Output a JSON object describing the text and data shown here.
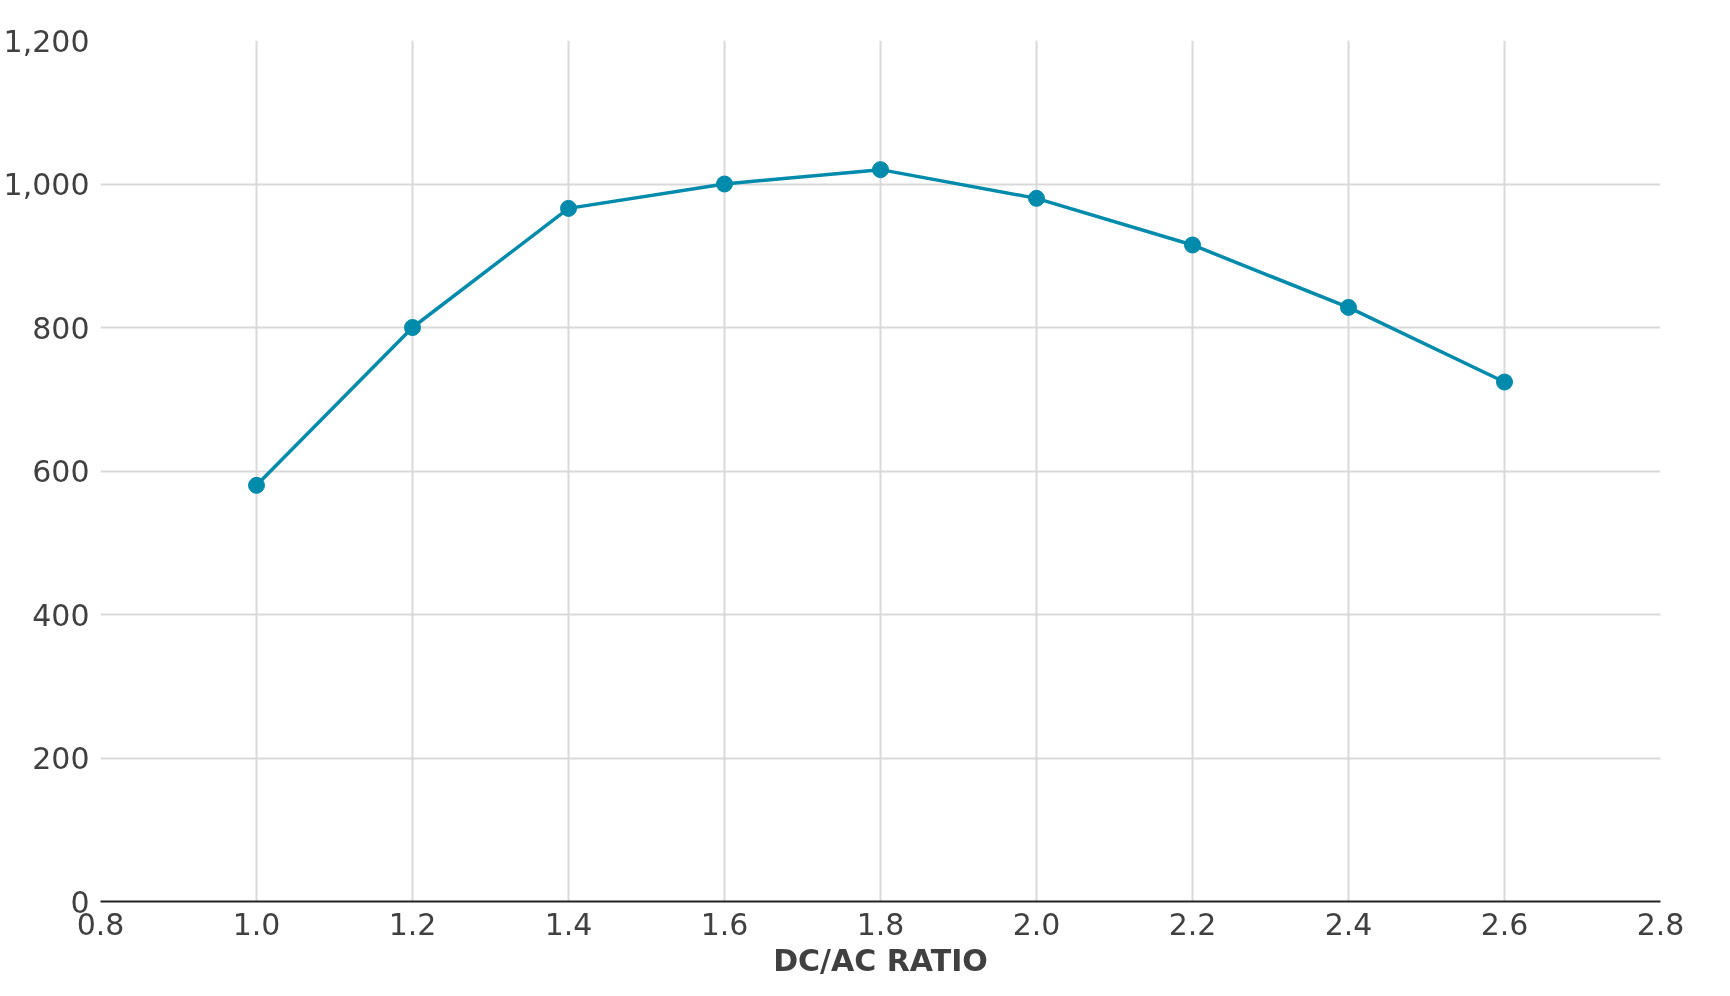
{
  "chart_data": {
    "type": "line",
    "xlabel": "DC/AC RATIO",
    "x": [
      1.0,
      1.2,
      1.4,
      1.6,
      1.8,
      2.0,
      2.2,
      2.4,
      2.6
    ],
    "series": [
      {
        "color": "#008aab",
        "values": [
          580,
          800,
          966,
          1000,
          1020,
          980,
          915,
          828,
          724
        ]
      }
    ],
    "xlim": [
      0.8,
      2.8
    ],
    "xticks": [
      {
        "value": 0.8,
        "label": "0.8"
      },
      {
        "value": 1.0,
        "label": "1.0"
      },
      {
        "value": 1.2,
        "label": "1.2"
      },
      {
        "value": 1.4,
        "label": "1.4"
      },
      {
        "value": 1.6,
        "label": "1.6"
      },
      {
        "value": 1.8,
        "label": "1.8"
      },
      {
        "value": 2.0,
        "label": "2.0"
      },
      {
        "value": 2.2,
        "label": "2.2"
      },
      {
        "value": 2.4,
        "label": "2.4"
      },
      {
        "value": 2.6,
        "label": "2.6"
      },
      {
        "value": 2.8,
        "label": "2.8"
      }
    ],
    "ylim": [
      0,
      1200
    ],
    "yticks": [
      0,
      200,
      400,
      600,
      800,
      {
        "value": 1000,
        "label": "1,000"
      },
      {
        "value": 1200,
        "label": "1,200"
      }
    ],
    "grid": true,
    "marker": "circle",
    "line_style": "solid"
  }
}
